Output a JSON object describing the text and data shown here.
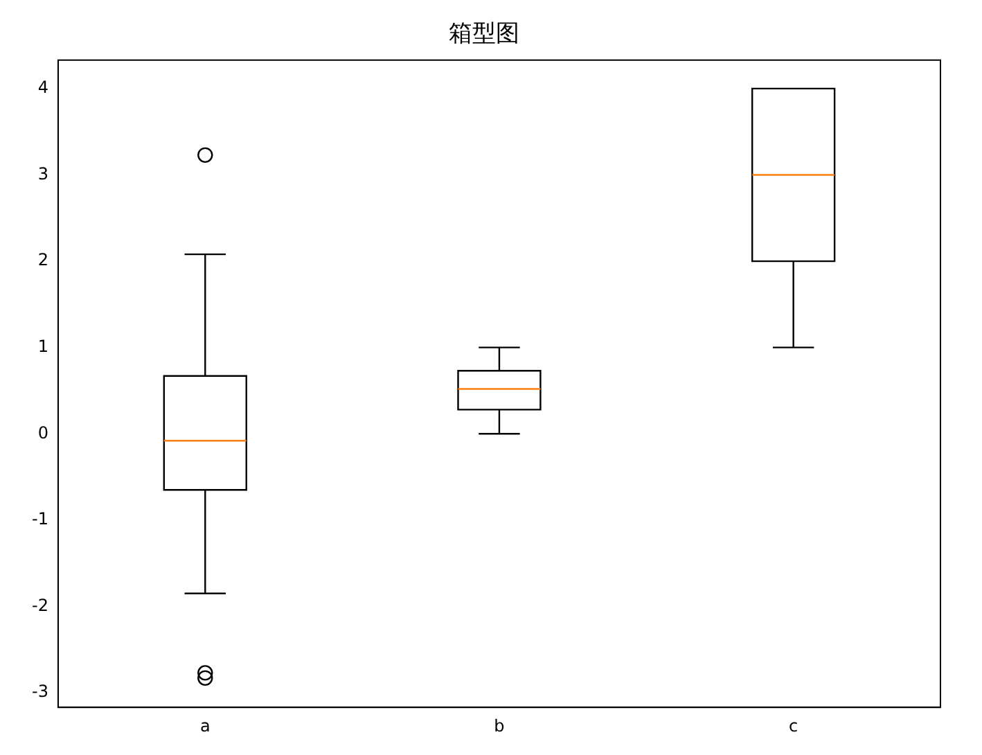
{
  "chart_data": {
    "type": "box",
    "title": "箱型图",
    "categories": [
      "a",
      "b",
      "c"
    ],
    "boxes": [
      {
        "low": -1.85,
        "q1": -0.65,
        "median": -0.08,
        "q3": 0.67,
        "high": 2.08,
        "outliers": [
          3.23,
          -2.77,
          -2.83
        ]
      },
      {
        "low": 0,
        "q1": 0.28,
        "median": 0.52,
        "q3": 0.73,
        "high": 1
      },
      {
        "low": 1,
        "q1": 2,
        "median": 3,
        "q3": 4,
        "high": 4
      }
    ],
    "color": "#000000",
    "ylim": [
      -3.17,
      4.33
    ],
    "yticks": [
      -3,
      -2,
      -1,
      0,
      1,
      2,
      3,
      4
    ],
    "grid": false,
    "legend": false
  }
}
